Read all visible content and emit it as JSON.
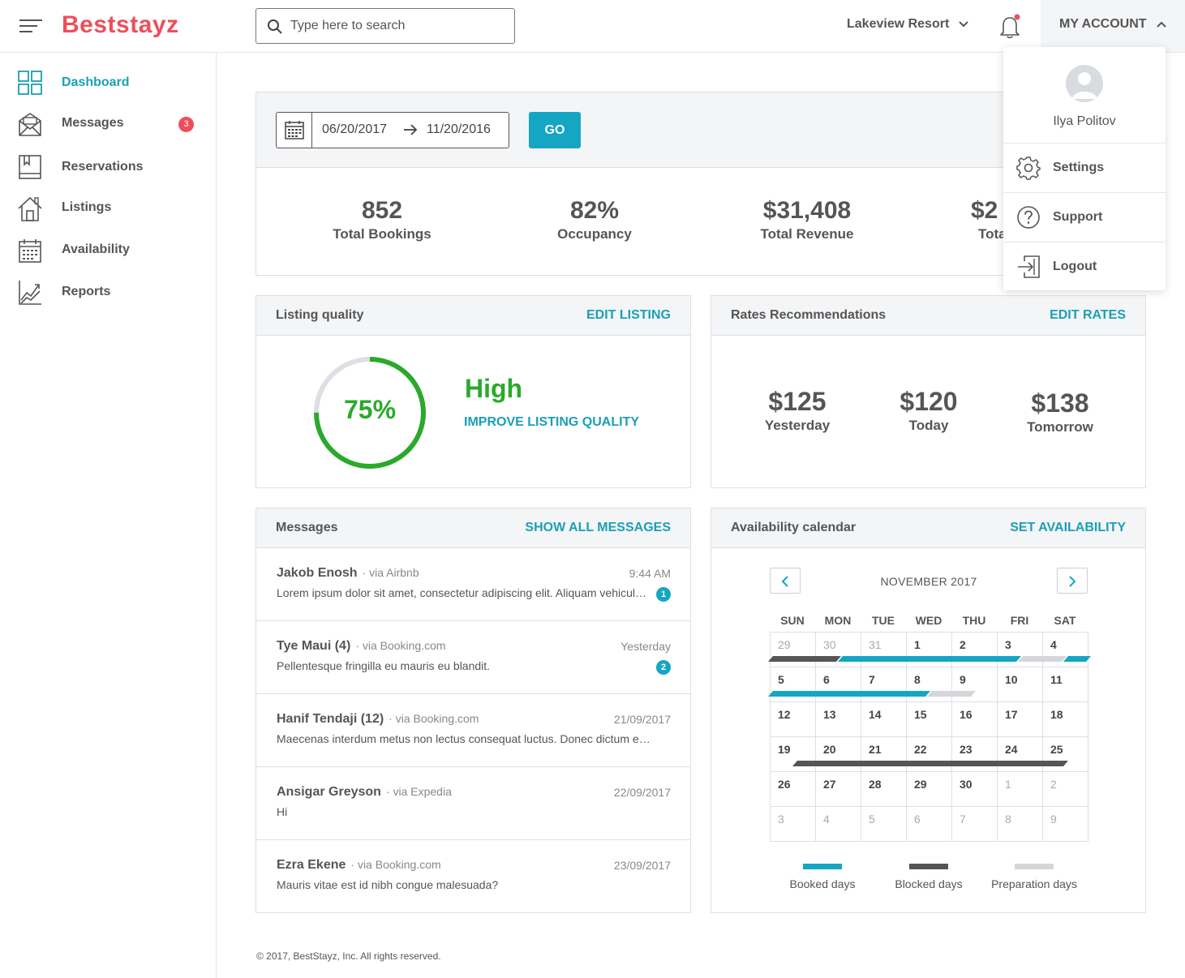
{
  "header": {
    "logo": "Beststayz",
    "search_placeholder": "Type here to search",
    "property": "Lakeview Resort",
    "account_label": "MY ACCOUNT"
  },
  "sidebar": {
    "items": [
      {
        "label": "Dashboard",
        "icon": "grid-icon",
        "active": true
      },
      {
        "label": "Messages",
        "icon": "envelope-icon",
        "badge": "3"
      },
      {
        "label": "Reservations",
        "icon": "book-icon"
      },
      {
        "label": "Listings",
        "icon": "home-icon"
      },
      {
        "label": "Availability",
        "icon": "calendar-icon"
      },
      {
        "label": "Reports",
        "icon": "chart-icon"
      }
    ]
  },
  "stats": {
    "date_from": "06/20/2017",
    "date_to": "11/20/2016",
    "go_label": "GO",
    "items": [
      {
        "value": "852",
        "label": "Total Bookings"
      },
      {
        "value": "82%",
        "label": "Occupancy"
      },
      {
        "value": "$31,408",
        "label": "Total Revenue"
      },
      {
        "value": "$2",
        "label": "Tota"
      }
    ]
  },
  "listing_quality": {
    "title": "Listing quality",
    "link": "EDIT LISTING",
    "percent_label": "75%",
    "percent": 0.75,
    "level": "High",
    "improve_link": "IMPROVE LISTING QUALITY"
  },
  "rates": {
    "title": "Rates Recommendations",
    "link": "EDIT RATES",
    "items": [
      {
        "value": "$125",
        "label": "Yesterday"
      },
      {
        "value": "$120",
        "label": "Today"
      },
      {
        "value": "$138",
        "label": "Tomorrow"
      }
    ]
  },
  "messages": {
    "title": "Messages",
    "link": "SHOW ALL MESSAGES",
    "items": [
      {
        "name": "Jakob Enosh",
        "source": "· via Airbnb",
        "time": "9:44 AM",
        "body": "Lorem ipsum dolor sit amet, consectetur adipiscing elit. Aliquam vehicula n...",
        "unread": "1"
      },
      {
        "name": "Tye Maui (4)",
        "source": "· via Booking.com",
        "time": "Yesterday",
        "body": "Pellentesque fringilla eu mauris eu blandit.",
        "unread": "2"
      },
      {
        "name": "Hanif Tendaji (12)",
        "source": "· via Booking.com",
        "time": "21/09/2017",
        "body": "Maecenas interdum metus non lectus consequat luctus. Donec dictum eros ve..."
      },
      {
        "name": "Ansigar Greyson",
        "source": "· via Expedia",
        "time": "22/09/2017",
        "body": "Hi"
      },
      {
        "name": "Ezra Ekene",
        "source": "· via Booking.com",
        "time": "23/09/2017",
        "body": "Mauris vitae est id nibh congue malesuada?"
      }
    ]
  },
  "availability": {
    "title": "Availability calendar",
    "link": "SET AVAILABILITY",
    "month": "NOVEMBER 2017",
    "weekdays": [
      "SUN",
      "MON",
      "TUE",
      "WED",
      "THU",
      "FRI",
      "SAT"
    ],
    "days": [
      [
        "29",
        "30",
        "31",
        "1",
        "2",
        "3",
        "4"
      ],
      [
        "5",
        "6",
        "7",
        "8",
        "9",
        "10",
        "11"
      ],
      [
        "12",
        "13",
        "14",
        "15",
        "16",
        "17",
        "18"
      ],
      [
        "19",
        "20",
        "21",
        "22",
        "23",
        "24",
        "25"
      ],
      [
        "26",
        "27",
        "28",
        "29",
        "30",
        "1",
        "2"
      ],
      [
        "3",
        "4",
        "5",
        "6",
        "7",
        "8",
        "9"
      ]
    ],
    "muted": [
      [
        0,
        0
      ],
      [
        0,
        1
      ],
      [
        0,
        2
      ],
      [
        4,
        5
      ],
      [
        4,
        6
      ],
      [
        5,
        0
      ],
      [
        5,
        1
      ],
      [
        5,
        2
      ],
      [
        5,
        3
      ],
      [
        5,
        4
      ],
      [
        5,
        5
      ],
      [
        5,
        6
      ]
    ],
    "legend": [
      {
        "label": "Booked days",
        "color": "#14a6c2"
      },
      {
        "label": "Blocked days",
        "color": "#555555"
      },
      {
        "label": "Preparation days",
        "color": "#d4d6da"
      }
    ]
  },
  "account_menu": {
    "user": "Ilya Politov",
    "items": [
      {
        "label": "Settings",
        "icon": "gear-icon"
      },
      {
        "label": "Support",
        "icon": "question-icon"
      },
      {
        "label": "Logout",
        "icon": "logout-icon"
      }
    ]
  },
  "footer": "© 2017, BestStayz, Inc. All rights reserved."
}
